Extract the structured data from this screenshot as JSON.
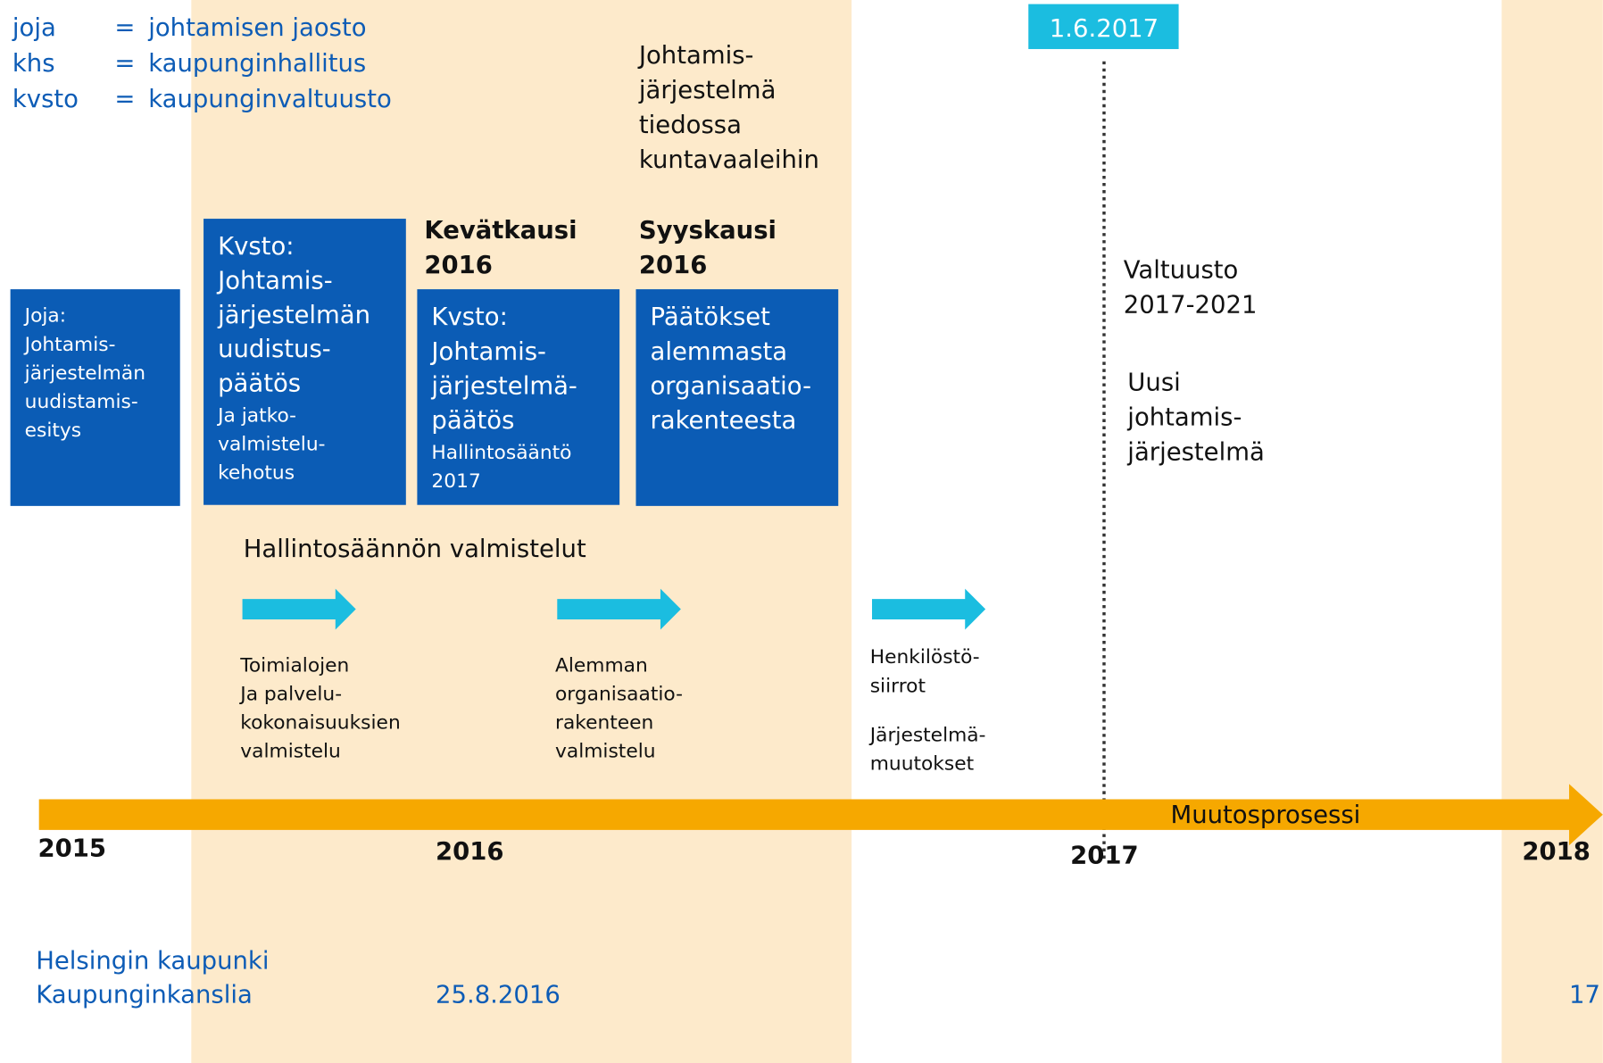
{
  "legend": [
    {
      "abbr": "joja",
      "eq": "=",
      "meaning": "johtamisen jaosto"
    },
    {
      "abbr": "khs",
      "eq": "=",
      "meaning": "kaupunginhallitus"
    },
    {
      "abbr": "kvsto",
      "eq": "=",
      "meaning": "kaupunginvaltuusto"
    }
  ],
  "date_badge": "1.6.2017",
  "note": [
    "Johtamis-",
    "järjestelmä",
    "tiedossa",
    "kuntavaaleihin"
  ],
  "season_headers": [
    [
      "Kevätkausi",
      "2016"
    ],
    [
      "Syyskausi",
      "2016"
    ]
  ],
  "boxes": [
    {
      "lines": [
        "Joja:",
        "Johtamis-",
        "järjestelmän",
        "uudistamis-",
        "esitys"
      ],
      "small": []
    },
    {
      "lines": [
        "Kvsto:",
        "Johtamis-",
        "järjestelmän",
        "uudistus-",
        "päätös"
      ],
      "small": [
        "Ja jatko-",
        "valmistelu-",
        "kehotus"
      ]
    },
    {
      "lines": [
        "Kvsto:",
        "Johtamis-",
        "järjestelmä-",
        "päätös"
      ],
      "small": [
        "Hallintosääntö",
        "2017"
      ]
    },
    {
      "lines": [
        "Päätökset",
        "alemmasta",
        "organisaatio-",
        "rakenteesta"
      ],
      "small": []
    }
  ],
  "valtuusto": [
    "Valtuusto",
    "2017-2021"
  ],
  "uusi": [
    "Uusi",
    "johtamis-",
    "järjestelmä"
  ],
  "prep_title": "Hallintosäännön valmistelut",
  "steps": [
    [
      "Toimialojen",
      "Ja palvelu-",
      "kokonaisuuksien",
      "valmistelu"
    ],
    [
      "Alemman",
      "organisaatio-",
      "rakenteen",
      "valmistelu"
    ],
    [
      "Henkilöstö-",
      "siirrot"
    ]
  ],
  "step_extra": [
    "Järjestelmä-",
    "muutokset"
  ],
  "timeline_label": "Muutosprosessi",
  "years": [
    "2015",
    "2016",
    "2017",
    "2018"
  ],
  "footer": {
    "org": [
      "Helsingin kaupunki",
      "Kaupunginkanslia"
    ],
    "date": "25.8.2016",
    "page": "17"
  }
}
